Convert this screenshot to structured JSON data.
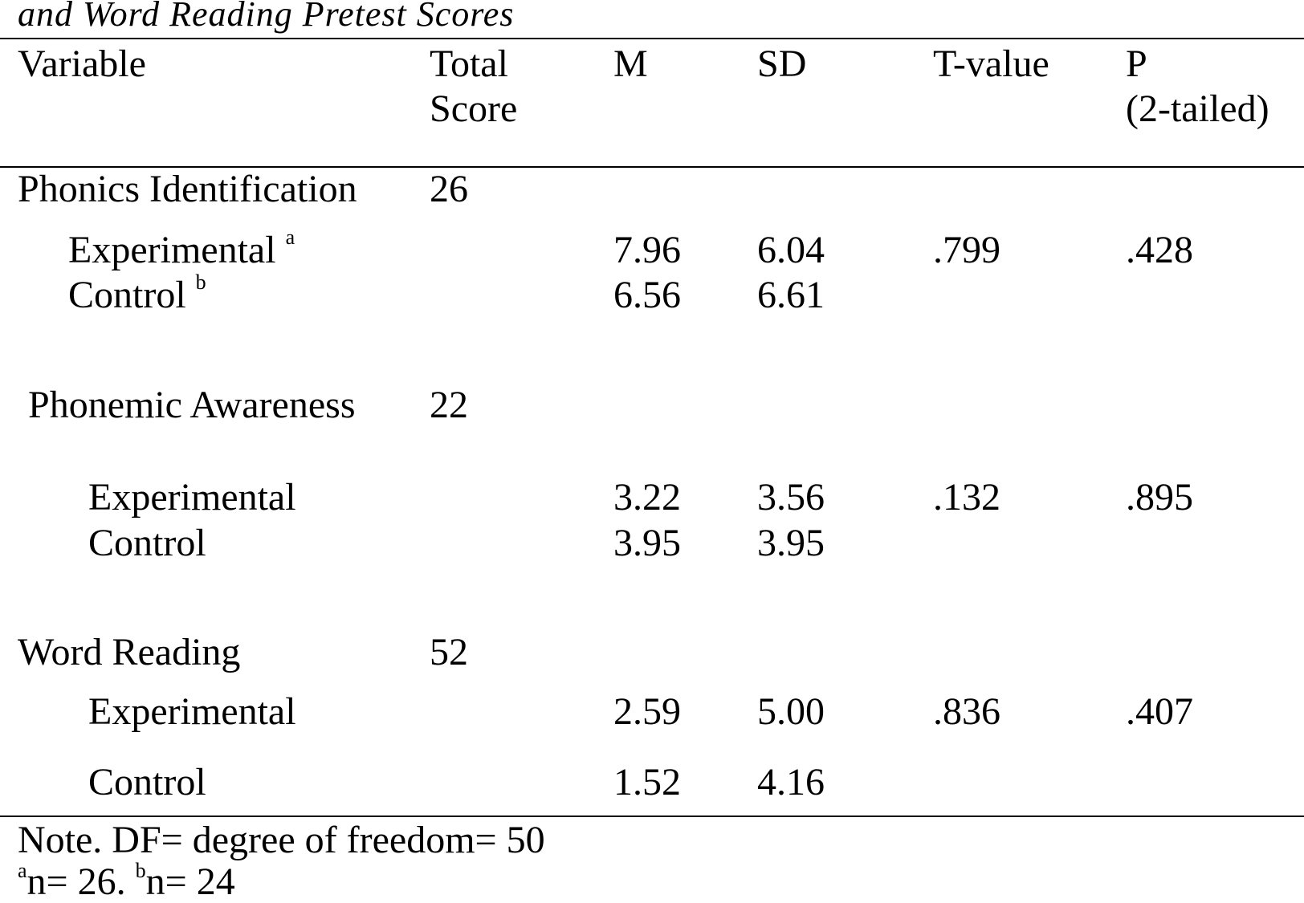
{
  "caption": {
    "title_fragment": "and Word Reading Pretest Scores"
  },
  "table": {
    "headers": {
      "variable": "Variable",
      "total_score_line1": "Total",
      "total_score_line2": "Score",
      "m": "M",
      "sd": "SD",
      "t_value": "T-value",
      "p_line1": "P",
      "p_line2": "(2-tailed)"
    },
    "groups": [
      {
        "variable": "Phonics Identification",
        "total_score": "26",
        "rows": [
          {
            "label": "Experimental",
            "sup": "a",
            "m": "7.96",
            "sd": "6.04",
            "t": ".799",
            "p": ".428"
          },
          {
            "label": "Control",
            "sup": "b",
            "m": "6.56",
            "sd": "6.61",
            "t": "",
            "p": ""
          }
        ]
      },
      {
        "variable": "Phonemic Awareness",
        "total_score": "22",
        "rows": [
          {
            "label": "Experimental",
            "m": "3.22",
            "sd": "3.56",
            "t": ".132",
            "p": ".895"
          },
          {
            "label": "Control",
            "m": "3.95",
            "sd": "3.95",
            "t": "",
            "p": ""
          }
        ]
      },
      {
        "variable": "Word Reading",
        "total_score": "52",
        "rows": [
          {
            "label": "Experimental",
            "m": "2.59",
            "sd": "5.00",
            "t": ".836",
            "p": ".407"
          },
          {
            "label": "Control",
            "m": "1.52",
            "sd": "4.16",
            "t": "",
            "p": ""
          }
        ]
      }
    ]
  },
  "note": {
    "line1": "Note. DF= degree of freedom= 50",
    "sup_a": "a",
    "n_a": "n= 26. ",
    "sup_b": "b",
    "n_b": "n= 24"
  }
}
